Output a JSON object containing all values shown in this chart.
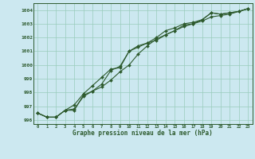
{
  "xlabel": "Graphe pression niveau de la mer (hPa)",
  "bg_color": "#cce8f0",
  "grid_color": "#99ccbb",
  "line_color": "#2d5a2d",
  "ylim": [
    995.7,
    1004.5
  ],
  "xlim": [
    -0.5,
    23.5
  ],
  "yticks": [
    996,
    997,
    998,
    999,
    1000,
    1001,
    1002,
    1003,
    1004
  ],
  "xticks": [
    0,
    1,
    2,
    3,
    4,
    5,
    6,
    7,
    8,
    9,
    10,
    11,
    12,
    13,
    14,
    15,
    16,
    17,
    18,
    19,
    20,
    21,
    22,
    23
  ],
  "series1": [
    996.5,
    996.2,
    996.2,
    996.7,
    996.7,
    997.8,
    998.1,
    998.4,
    998.9,
    999.5,
    1000.0,
    1000.8,
    1001.4,
    1001.9,
    1002.2,
    1002.5,
    1002.8,
    1003.0,
    1003.2,
    1003.5,
    1003.6,
    1003.7,
    1003.9,
    1004.1
  ],
  "series2": [
    996.5,
    996.2,
    996.2,
    996.7,
    996.8,
    997.7,
    998.1,
    998.6,
    999.6,
    999.9,
    1001.0,
    1001.4,
    1001.6,
    1002.0,
    1002.5,
    1002.7,
    1003.0,
    1003.1,
    1003.3,
    1003.8,
    1003.7,
    1003.8,
    1003.9,
    1004.1
  ],
  "series3": [
    996.5,
    996.2,
    996.2,
    996.7,
    997.1,
    997.9,
    998.5,
    999.1,
    999.7,
    999.8,
    1001.0,
    1001.3,
    1001.6,
    1001.8,
    1002.2,
    1002.5,
    1002.9,
    1003.0,
    1003.3,
    1003.8,
    1003.7,
    1003.8,
    1003.9,
    1004.1
  ]
}
